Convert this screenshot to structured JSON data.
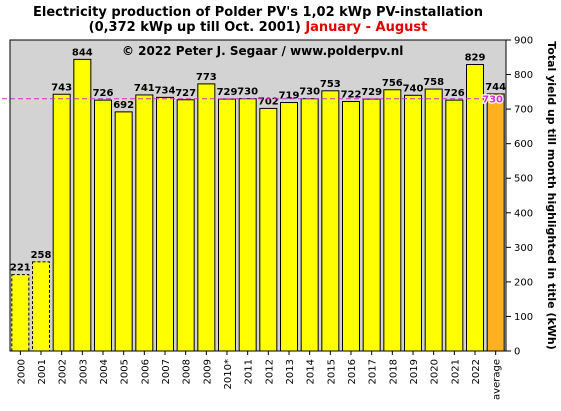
{
  "chart_data": {
    "type": "bar",
    "title_line1": "Electricity production  of Polder  PV's  1,02 kWp PV-installation",
    "title_line2_black": "(0,372 kWp up till Oct. 2001) ",
    "title_line2_red": "January - August",
    "copyright": "© 2022 Peter J. Segaar / www.polderpv.nl",
    "ylabel": "Total yield up till month highlighted in title (kWh)",
    "ylim": [
      0,
      900
    ],
    "yticks": [
      "0",
      "100",
      "200",
      "300",
      "400",
      "500",
      "600",
      "700",
      "800",
      "900"
    ],
    "categories": [
      "2000",
      "2001",
      "2002",
      "2003",
      "2004",
      "2005",
      "2006",
      "2007",
      "2008",
      "2009",
      "2010*",
      "2011",
      "2012",
      "2013",
      "2014",
      "2015",
      "2016",
      "2017",
      "2018",
      "2019",
      "2020",
      "2021",
      "2022",
      "average"
    ],
    "values": [
      221,
      258,
      743,
      844,
      726,
      692,
      741,
      734,
      727,
      773,
      729,
      730,
      702,
      719,
      730,
      753,
      722,
      729,
      756,
      740,
      758,
      726,
      829,
      744
    ],
    "value_labels": [
      "221",
      "258",
      "743",
      "844",
      "726",
      "692",
      "741",
      "734",
      "727",
      "773",
      "729",
      "730",
      "702",
      "719",
      "730",
      "753",
      "722",
      "729",
      "756",
      "740",
      "758",
      "726",
      "829",
      "744"
    ],
    "dashed_bars": [
      "2000",
      "2001"
    ],
    "reference_line": {
      "value": 730,
      "label": "730",
      "color": "#cc33cc"
    },
    "colors": {
      "bar": "#ffff00",
      "average_bar": "#ffb020",
      "plot_background": "#d3d3d3",
      "average_label": "#e00000",
      "reference_label": "#cc33cc"
    },
    "grid": false,
    "legend": "none"
  }
}
